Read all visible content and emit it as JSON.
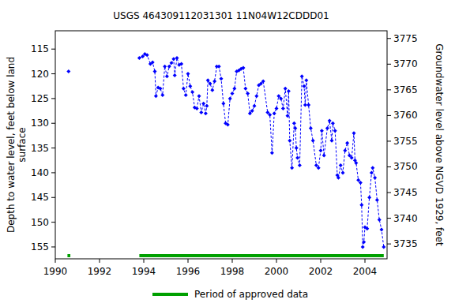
{
  "chart_data": {
    "type": "scatter",
    "title": "USGS 464309112031301 11N04W12CDDD01",
    "y_label": [
      "Depth to water level, feet below land",
      "surface"
    ],
    "y2_label": "Groundwater level above NGVD 1929, feet",
    "xlim": [
      1990,
      2005
    ],
    "xticks": [
      1990,
      1992,
      1994,
      1996,
      1998,
      2000,
      2002,
      2004
    ],
    "ylim": [
      157.4,
      111.3
    ],
    "yticks": [
      115,
      120,
      125,
      130,
      135,
      140,
      145,
      150,
      155
    ],
    "y2lim": [
      3732.1,
      3776.5
    ],
    "y2ticks": [
      3735,
      3740,
      3745,
      3750,
      3755,
      3760,
      3765,
      3770,
      3775
    ],
    "grid": false,
    "series": [
      {
        "name": "Depth to water level",
        "color": "#0000ff",
        "marker": "diamond",
        "line_style": "dashed",
        "x": [
          1990.6,
          1992.0,
          1993.8,
          1993.95,
          1994.05,
          1994.15,
          1994.3,
          1994.4,
          1994.5,
          1994.55,
          1994.65,
          1994.75,
          1994.85,
          1994.95,
          1995.05,
          1995.15,
          1995.25,
          1995.35,
          1995.4,
          1995.5,
          1995.6,
          1995.7,
          1995.8,
          1995.9,
          1996.0,
          1996.1,
          1996.2,
          1996.3,
          1996.4,
          1996.5,
          1996.6,
          1996.7,
          1996.8,
          1996.85,
          1996.9,
          1997.0,
          1997.1,
          1997.2,
          1997.3,
          1997.4,
          1997.5,
          1997.6,
          1997.7,
          1997.8,
          1997.9,
          1998.0,
          1998.1,
          1998.2,
          1998.3,
          1998.4,
          1998.5,
          1998.6,
          1998.7,
          1998.8,
          1998.9,
          1999.0,
          1999.1,
          1999.2,
          1999.3,
          1999.4,
          1999.6,
          1999.7,
          1999.8,
          1999.9,
          2000.0,
          2000.1,
          2000.2,
          2000.3,
          2000.4,
          2000.5,
          2000.55,
          2000.6,
          2000.7,
          2000.8,
          2000.85,
          2000.9,
          2000.95,
          2001.05,
          2001.15,
          2001.25,
          2001.3,
          2001.35,
          2001.45,
          2001.55,
          2001.65,
          2001.8,
          2001.9,
          2002.0,
          2002.05,
          2002.15,
          2002.3,
          2002.4,
          2002.5,
          2002.55,
          2002.65,
          2002.75,
          2002.8,
          2002.9,
          2003.0,
          2003.1,
          2003.2,
          2003.3,
          2003.4,
          2003.5,
          2003.55,
          2003.6,
          2003.7,
          2003.8,
          2003.85,
          2003.9,
          2003.95,
          2004.0,
          2004.1,
          2004.2,
          2004.3,
          2004.35,
          2004.45,
          2004.55,
          2004.65,
          2004.75,
          2004.85
        ],
        "values": [
          119.5,
          null,
          116.8,
          116.5,
          116.0,
          116.2,
          118.0,
          117.7,
          119.5,
          124.5,
          122.8,
          123.0,
          124.3,
          118.5,
          120.5,
          118.5,
          117.8,
          117.0,
          120.3,
          116.8,
          118.2,
          118.0,
          123.0,
          124.3,
          120.0,
          122.5,
          123.7,
          126.8,
          127.0,
          124.5,
          127.8,
          126.0,
          128.0,
          126.5,
          121.3,
          122.0,
          123.3,
          121.5,
          118.5,
          118.5,
          121.0,
          126.0,
          130.0,
          130.3,
          125.0,
          124.0,
          123.0,
          119.5,
          119.3,
          119.0,
          118.8,
          123.0,
          124.0,
          128.0,
          127.5,
          126.5,
          124.5,
          122.3,
          122.0,
          121.5,
          127.8,
          128.3,
          136.0,
          128.0,
          127.0,
          124.5,
          125.0,
          127.0,
          123.0,
          128.5,
          123.5,
          133.5,
          139.0,
          130.0,
          131.0,
          135.0,
          137.0,
          138.5,
          120.5,
          122.5,
          126.3,
          121.3,
          126.3,
          131.0,
          133.5,
          138.5,
          139.0,
          135.5,
          131.5,
          136.5,
          131.0,
          129.5,
          133.5,
          130.0,
          131.5,
          140.5,
          141.0,
          138.5,
          140.0,
          135.5,
          134.0,
          136.5,
          137.0,
          132.0,
          137.5,
          138.0,
          141.5,
          142.0,
          146.5,
          155.0,
          154.0,
          151.0,
          151.3,
          145.0,
          140.0,
          139.0,
          141.0,
          145.5,
          149.5,
          151.5,
          155.0
        ]
      }
    ],
    "approved_periods": {
      "name": "Period of approved data",
      "color": "#00a000",
      "ranges": [
        [
          1990.55,
          1990.68
        ],
        [
          1993.8,
          2004.85
        ]
      ]
    },
    "legend": "bottom"
  }
}
